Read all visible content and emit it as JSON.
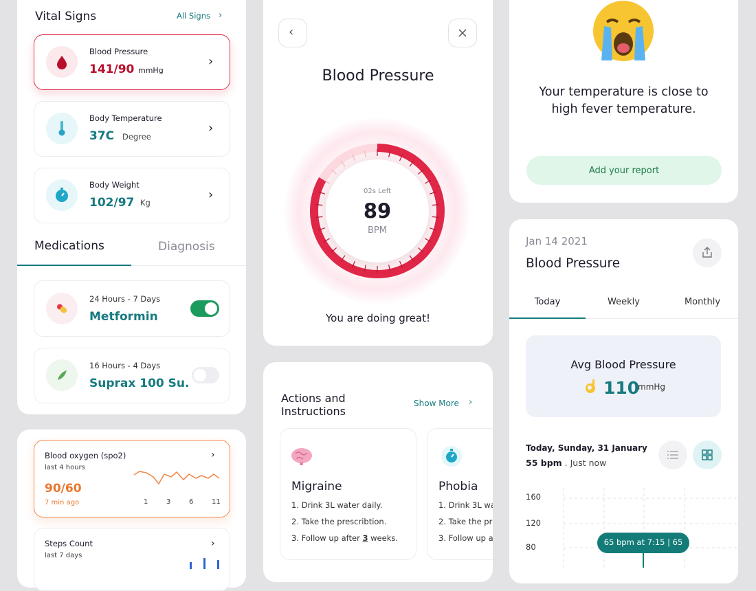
{
  "vital_signs": {
    "title": "Vital Signs",
    "link": "All Signs",
    "items": [
      {
        "label": "Blood Pressure",
        "value": "141/90",
        "unit": "mmHg"
      },
      {
        "label": "Body Temperature",
        "value": "37C",
        "unit": "Degree"
      },
      {
        "label": "Body Weight",
        "value": "102/97",
        "unit": "Kg"
      }
    ]
  },
  "medications": {
    "tabs": [
      "Medications",
      "Diagnosis"
    ],
    "items": [
      {
        "schedule": "24 Hours - 7 Days",
        "name": "Metformin"
      },
      {
        "schedule": "16 Hours - 4 Days",
        "name": "Suprax 100 Su."
      }
    ]
  },
  "blood_oxygen": {
    "title": "Blood oxygen (spo2)",
    "subtitle": "last 4 hours",
    "value": "90/60",
    "time": "7 min ago",
    "ticks": [
      "1",
      "3",
      "6",
      "11"
    ]
  },
  "steps": {
    "title": "Steps Count",
    "subtitle": "last 7 days"
  },
  "bp_detail": {
    "title": "Blood Pressure",
    "timer": "02s Left",
    "value": "89",
    "unit": "BPM",
    "message": "You are doing great!"
  },
  "actions": {
    "title": "Actions and Instructions",
    "link": "Show More",
    "cards": [
      {
        "title": "Migraine",
        "steps": [
          "1. Drink 3L water daily.",
          "2. Take the prescribtion."
        ],
        "last_step": {
          "before": "3. Follow up after ",
          "count": "3",
          "after": " weeks."
        }
      },
      {
        "title": "Phobia",
        "steps": [
          "1. Drink 3L wa",
          "2. Take the pr",
          "3. Follow up a"
        ]
      }
    ]
  },
  "temperature": {
    "message": "Your temperature is close to high fever temperature.",
    "button": "Add your report"
  },
  "bp_history": {
    "date": "Jan 14 2021",
    "title": "Blood Pressure",
    "tabs": [
      "Today",
      "Weekly",
      "Monthly"
    ],
    "avg_label": "Avg Blood Pressure",
    "avg_value": "110",
    "avg_unit": "mmHg",
    "reading_date": "Today, Sunday, 31 January",
    "reading_value": "55 bpm",
    "reading_time": " . Just now",
    "yticks": [
      "160",
      "120",
      "80"
    ],
    "tooltip": "65 bpm at 7:15 | 65"
  }
}
